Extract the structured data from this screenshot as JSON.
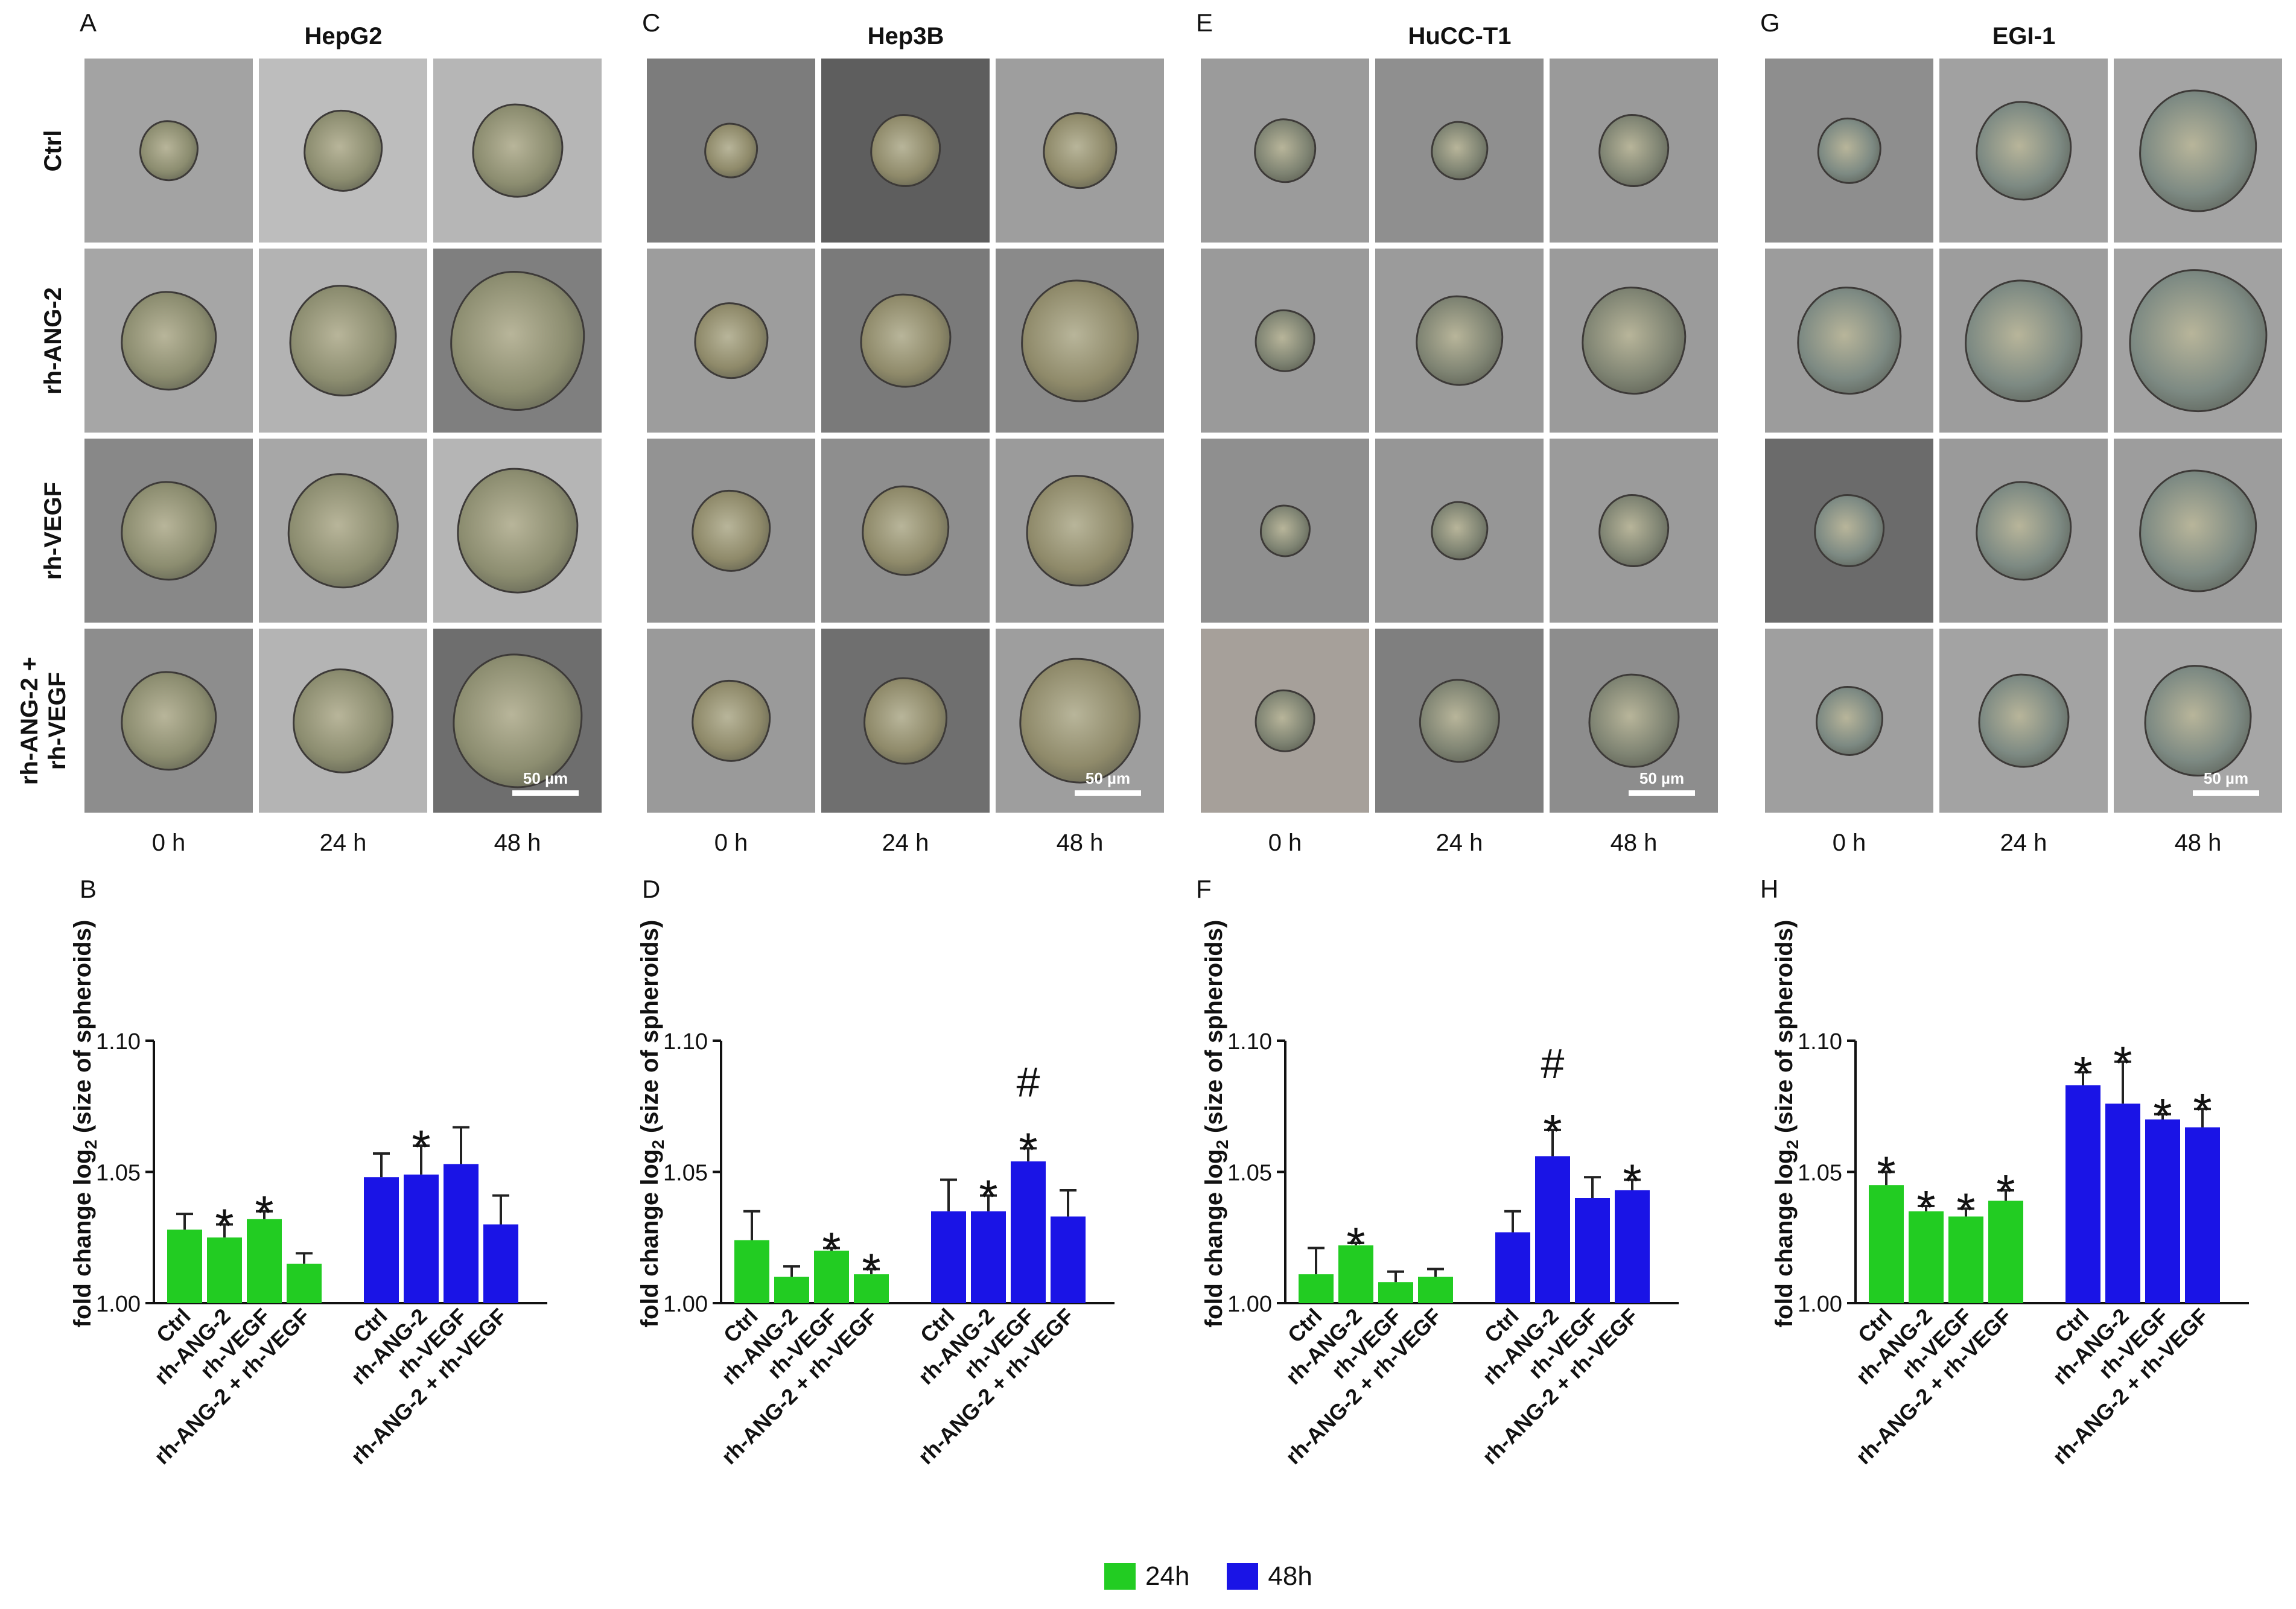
{
  "figure": {
    "panels": [
      {
        "image_letter": "A",
        "chart_letter": "B",
        "title": "HepG2",
        "rows": [
          "Ctrl",
          "rh-ANG-2",
          "rh-VEGF",
          "rh-ANG-2 +\nrh-VEGF"
        ],
        "times": [
          "0 h",
          "24 h",
          "48 h"
        ],
        "scale": "50 µm"
      },
      {
        "image_letter": "C",
        "chart_letter": "D",
        "title": "Hep3B",
        "times": [
          "0 h",
          "24 h",
          "48 h"
        ],
        "scale": "50 µm"
      },
      {
        "image_letter": "E",
        "chart_letter": "F",
        "title": "HuCC-T1",
        "times": [
          "0 h",
          "24 h",
          "48 h"
        ],
        "scale": "50 µm"
      },
      {
        "image_letter": "G",
        "chart_letter": "H",
        "title": "EGI-1",
        "times": [
          "0 h",
          "24 h",
          "48 h"
        ],
        "scale": "50 µm"
      }
    ],
    "row_labels": [
      "Ctrl",
      "rh-ANG-2",
      "rh-VEGF",
      "rh-ANG-2 +\nrh-VEGF"
    ]
  },
  "legend": [
    {
      "label": "24h",
      "color": "#22cc22"
    },
    {
      "label": "48h",
      "color": "#1a14e6"
    }
  ],
  "colors": {
    "g24": "#22cc22",
    "b48": "#1a14e6",
    "error": "#222222"
  },
  "chart_data": [
    {
      "type": "bar",
      "panel": "B",
      "title": "HepG2",
      "ylabel": "fold change log2 (size of spheroids)",
      "ylim": [
        1.0,
        1.1
      ],
      "yticks": [
        "1.00",
        "1.05",
        "1.10"
      ],
      "categories": [
        "Ctrl",
        "rh-ANG-2",
        "rh-VEGF",
        "rh-ANG-2 + rh-VEGF"
      ],
      "series": [
        {
          "name": "24h",
          "values": [
            1.028,
            1.025,
            1.032,
            1.015
          ],
          "errors": [
            0.006,
            0.005,
            0.003,
            0.004
          ],
          "annotations": [
            "",
            "*",
            "*",
            ""
          ]
        },
        {
          "name": "48h",
          "values": [
            1.048,
            1.049,
            1.053,
            1.03
          ],
          "errors": [
            0.009,
            0.011,
            0.014,
            0.011
          ],
          "annotations": [
            "",
            "*",
            "",
            ""
          ]
        }
      ]
    },
    {
      "type": "bar",
      "panel": "D",
      "title": "Hep3B",
      "ylabel": "fold change log2 (size of spheroids)",
      "ylim": [
        1.0,
        1.1
      ],
      "yticks": [
        "1.00",
        "1.05",
        "1.10"
      ],
      "categories": [
        "Ctrl",
        "rh-ANG-2",
        "rh-VEGF",
        "rh-ANG-2 + rh-VEGF"
      ],
      "series": [
        {
          "name": "24h",
          "values": [
            1.024,
            1.01,
            1.02,
            1.011
          ],
          "errors": [
            0.011,
            0.004,
            0.001,
            0.002
          ],
          "annotations": [
            "",
            "",
            "*",
            "*"
          ]
        },
        {
          "name": "48h",
          "values": [
            1.035,
            1.035,
            1.054,
            1.033
          ],
          "errors": [
            0.012,
            0.006,
            0.005,
            0.01
          ],
          "annotations": [
            "",
            "*",
            "* #",
            ""
          ]
        }
      ]
    },
    {
      "type": "bar",
      "panel": "F",
      "title": "HuCC-T1",
      "ylabel": "fold change log2 (size of spheroids)",
      "ylim": [
        1.0,
        1.1
      ],
      "yticks": [
        "1.00",
        "1.05",
        "1.10"
      ],
      "categories": [
        "Ctrl",
        "rh-ANG-2",
        "rh-VEGF",
        "rh-ANG-2 + rh-VEGF"
      ],
      "series": [
        {
          "name": "24h",
          "values": [
            1.011,
            1.022,
            1.008,
            1.01
          ],
          "errors": [
            0.01,
            0.001,
            0.004,
            0.003
          ],
          "annotations": [
            "",
            "*",
            "",
            ""
          ]
        },
        {
          "name": "48h",
          "values": [
            1.027,
            1.056,
            1.04,
            1.043
          ],
          "errors": [
            0.008,
            0.01,
            0.008,
            0.004
          ],
          "annotations": [
            "",
            "* #",
            "",
            "*"
          ]
        }
      ]
    },
    {
      "type": "bar",
      "panel": "H",
      "title": "EGI-1",
      "ylabel": "fold change log2 (size of spheroids)",
      "ylim": [
        1.0,
        1.1
      ],
      "yticks": [
        "1.00",
        "1.05",
        "1.10"
      ],
      "categories": [
        "Ctrl",
        "rh-ANG-2",
        "rh-VEGF",
        "rh-ANG-2 + rh-VEGF"
      ],
      "series": [
        {
          "name": "24h",
          "values": [
            1.045,
            1.035,
            1.033,
            1.039
          ],
          "errors": [
            0.005,
            0.002,
            0.003,
            0.004
          ],
          "annotations": [
            "*",
            "*",
            "*",
            "*"
          ]
        },
        {
          "name": "48h",
          "values": [
            1.083,
            1.076,
            1.07,
            1.067
          ],
          "errors": [
            0.005,
            0.016,
            0.002,
            0.007
          ],
          "annotations": [
            "*",
            "*",
            "*",
            "*"
          ]
        }
      ]
    }
  ]
}
